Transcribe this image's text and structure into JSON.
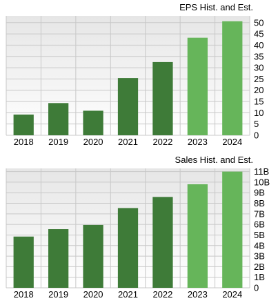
{
  "colors": {
    "historical": "#3e7b38",
    "estimate": "#66b55a",
    "grid": "#c8c8c8",
    "plot_bg_top": "#e6e6e6",
    "plot_bg_bottom": "#ffffff"
  },
  "chart_data": [
    {
      "type": "bar",
      "title": "EPS Hist. and Est.",
      "categories": [
        "2018",
        "2019",
        "2020",
        "2021",
        "2022",
        "2023",
        "2024"
      ],
      "values": [
        9.2,
        14.3,
        10.9,
        25.4,
        32.5,
        43.3,
        50.6
      ],
      "kind": [
        "historical",
        "historical",
        "historical",
        "historical",
        "historical",
        "estimate",
        "estimate"
      ],
      "ylim": [
        0,
        53
      ],
      "yticks": [
        0,
        5,
        10,
        15,
        20,
        25,
        30,
        35,
        40,
        45,
        50
      ],
      "ytick_labels": [
        "0",
        "5",
        "10",
        "15",
        "20",
        "25",
        "30",
        "35",
        "40",
        "45",
        "50"
      ],
      "y_axis_side": "right",
      "grid": true,
      "xlabel": "",
      "ylabel": ""
    },
    {
      "type": "bar",
      "title": "Sales Hist. and Est.",
      "categories": [
        "2018",
        "2019",
        "2020",
        "2021",
        "2022",
        "2023",
        "2024"
      ],
      "values": [
        4.85,
        5.55,
        5.95,
        7.55,
        8.6,
        9.8,
        11.0
      ],
      "kind": [
        "historical",
        "historical",
        "historical",
        "historical",
        "historical",
        "estimate",
        "estimate"
      ],
      "ylim": [
        0,
        11.3
      ],
      "yticks": [
        0,
        1,
        2,
        3,
        4,
        5,
        6,
        7,
        8,
        9,
        10,
        11
      ],
      "ytick_labels": [
        "0",
        "1B",
        "2B",
        "3B",
        "4B",
        "5B",
        "6B",
        "7B",
        "8B",
        "9B",
        "10B",
        "11B"
      ],
      "y_axis_side": "right",
      "grid": true,
      "xlabel": "",
      "ylabel": ""
    }
  ]
}
